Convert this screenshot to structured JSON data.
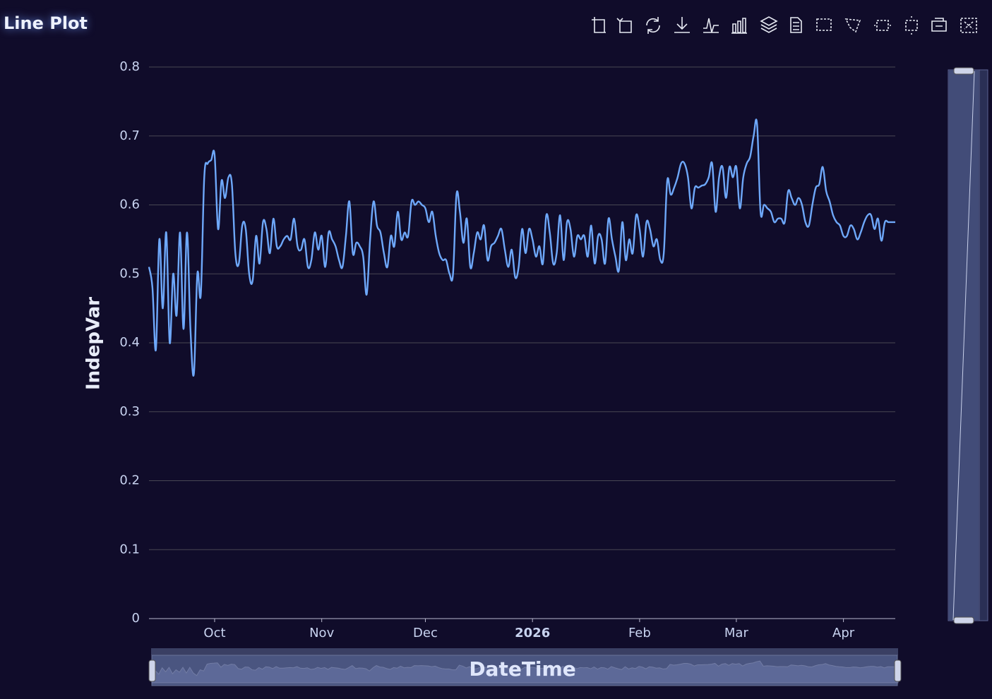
{
  "chart_data": {
    "type": "line",
    "title": "Line Plot",
    "xlabel": "DateTime",
    "ylabel": "IndepVar",
    "x": [
      "2025-09-12",
      "2025-09-13",
      "2025-09-14",
      "2025-09-15",
      "2025-09-16",
      "2025-09-17",
      "2025-09-18",
      "2025-09-19",
      "2025-09-20",
      "2025-09-21",
      "2025-09-22",
      "2025-09-23",
      "2025-09-24",
      "2025-09-25",
      "2025-09-26",
      "2025-09-27",
      "2025-09-28",
      "2025-09-29",
      "2025-09-30",
      "2025-10-01",
      "2025-10-02",
      "2025-10-03",
      "2025-10-04",
      "2025-10-05",
      "2025-10-06",
      "2025-10-07",
      "2025-10-08",
      "2025-10-09",
      "2025-10-10",
      "2025-10-11",
      "2025-10-12",
      "2025-10-13",
      "2025-10-14",
      "2025-10-15",
      "2025-10-16",
      "2025-10-17",
      "2025-10-18",
      "2025-10-19",
      "2025-10-20",
      "2025-10-21",
      "2025-10-22",
      "2025-10-23",
      "2025-10-24",
      "2025-10-25",
      "2025-10-26",
      "2025-10-27",
      "2025-10-28",
      "2025-10-29",
      "2025-10-30",
      "2025-10-31",
      "2025-11-01",
      "2025-11-02",
      "2025-11-03",
      "2025-11-04",
      "2025-11-05",
      "2025-11-06",
      "2025-11-07",
      "2025-11-08",
      "2025-11-09",
      "2025-11-10",
      "2025-11-11",
      "2025-11-12",
      "2025-11-13",
      "2025-11-14",
      "2025-11-15",
      "2025-11-16",
      "2025-11-17",
      "2025-11-18",
      "2025-11-19",
      "2025-11-20",
      "2025-11-21",
      "2025-11-22",
      "2025-11-23",
      "2025-11-24",
      "2025-11-25",
      "2025-11-26",
      "2025-11-27",
      "2025-11-28",
      "2025-11-29",
      "2025-11-30",
      "2025-12-01",
      "2025-12-02",
      "2025-12-03",
      "2025-12-04",
      "2025-12-05",
      "2025-12-06",
      "2025-12-07",
      "2025-12-08",
      "2025-12-09",
      "2025-12-10",
      "2025-12-11",
      "2025-12-12",
      "2025-12-13",
      "2025-12-14",
      "2025-12-15",
      "2025-12-16",
      "2025-12-17",
      "2025-12-18",
      "2025-12-19",
      "2025-12-20",
      "2025-12-21",
      "2025-12-22",
      "2025-12-23",
      "2025-12-24",
      "2025-12-25",
      "2025-12-26",
      "2025-12-27",
      "2025-12-28",
      "2025-12-29",
      "2025-12-30",
      "2025-12-31",
      "2026-01-01",
      "2026-01-02",
      "2026-01-03",
      "2026-01-04",
      "2026-01-05",
      "2026-01-06",
      "2026-01-07",
      "2026-01-08",
      "2026-01-09",
      "2026-01-10",
      "2026-01-11",
      "2026-01-12",
      "2026-01-13",
      "2026-01-14",
      "2026-01-15",
      "2026-01-16",
      "2026-01-17",
      "2026-01-18",
      "2026-01-19",
      "2026-01-20",
      "2026-01-21",
      "2026-01-22",
      "2026-01-23",
      "2026-01-24",
      "2026-01-25",
      "2026-01-26",
      "2026-01-27",
      "2026-01-28",
      "2026-01-29",
      "2026-01-30",
      "2026-01-31",
      "2026-02-01",
      "2026-02-02",
      "2026-02-03",
      "2026-02-04",
      "2026-02-05",
      "2026-02-06",
      "2026-02-07",
      "2026-02-08",
      "2026-02-09",
      "2026-02-10",
      "2026-02-11",
      "2026-02-12",
      "2026-02-13",
      "2026-02-14",
      "2026-02-15",
      "2026-02-16",
      "2026-02-17",
      "2026-02-18",
      "2026-02-19",
      "2026-02-20",
      "2026-02-21",
      "2026-02-22",
      "2026-02-23",
      "2026-02-24",
      "2026-02-25",
      "2026-02-26",
      "2026-02-27",
      "2026-02-28",
      "2026-03-01",
      "2026-03-02",
      "2026-03-03",
      "2026-03-04",
      "2026-03-05",
      "2026-03-06",
      "2026-03-07",
      "2026-03-08",
      "2026-03-09",
      "2026-03-10",
      "2026-03-11",
      "2026-03-12",
      "2026-03-13",
      "2026-03-14",
      "2026-03-15",
      "2026-03-16",
      "2026-03-17",
      "2026-03-18",
      "2026-03-19",
      "2026-03-20",
      "2026-03-21",
      "2026-03-22",
      "2026-03-23",
      "2026-03-24",
      "2026-03-25",
      "2026-03-26",
      "2026-03-27",
      "2026-03-28",
      "2026-03-29",
      "2026-03-30",
      "2026-03-31",
      "2026-04-01",
      "2026-04-02",
      "2026-04-03",
      "2026-04-04",
      "2026-04-05",
      "2026-04-06",
      "2026-04-07",
      "2026-04-08",
      "2026-04-09",
      "2026-04-10",
      "2026-04-11",
      "2026-04-12",
      "2026-04-13",
      "2026-04-14",
      "2026-04-15",
      "2026-04-16"
    ],
    "series": [
      {
        "color": "#6ea8fa",
        "values": [
          0.51,
          0.48,
          0.39,
          0.55,
          0.45,
          0.56,
          0.4,
          0.5,
          0.44,
          0.56,
          0.42,
          0.56,
          0.42,
          0.355,
          0.5,
          0.47,
          0.64,
          0.66,
          0.665,
          0.672,
          0.565,
          0.635,
          0.61,
          0.64,
          0.63,
          0.53,
          0.515,
          0.57,
          0.565,
          0.5,
          0.49,
          0.555,
          0.515,
          0.575,
          0.565,
          0.53,
          0.58,
          0.54,
          0.54,
          0.55,
          0.555,
          0.55,
          0.58,
          0.54,
          0.535,
          0.55,
          0.51,
          0.52,
          0.56,
          0.535,
          0.555,
          0.51,
          0.56,
          0.55,
          0.54,
          0.52,
          0.51,
          0.555,
          0.605,
          0.53,
          0.545,
          0.54,
          0.525,
          0.47,
          0.55,
          0.605,
          0.57,
          0.56,
          0.53,
          0.51,
          0.555,
          0.54,
          0.59,
          0.55,
          0.56,
          0.555,
          0.605,
          0.6,
          0.605,
          0.6,
          0.595,
          0.575,
          0.59,
          0.555,
          0.53,
          0.52,
          0.52,
          0.5,
          0.5,
          0.615,
          0.59,
          0.545,
          0.58,
          0.51,
          0.53,
          0.56,
          0.55,
          0.57,
          0.52,
          0.54,
          0.545,
          0.555,
          0.565,
          0.535,
          0.51,
          0.535,
          0.495,
          0.51,
          0.565,
          0.53,
          0.565,
          0.55,
          0.525,
          0.54,
          0.515,
          0.585,
          0.56,
          0.515,
          0.53,
          0.585,
          0.52,
          0.575,
          0.565,
          0.525,
          0.555,
          0.55,
          0.555,
          0.525,
          0.57,
          0.515,
          0.555,
          0.55,
          0.515,
          0.58,
          0.55,
          0.525,
          0.505,
          0.575,
          0.52,
          0.55,
          0.53,
          0.585,
          0.565,
          0.525,
          0.575,
          0.565,
          0.54,
          0.55,
          0.52,
          0.53,
          0.635,
          0.615,
          0.625,
          0.64,
          0.66,
          0.66,
          0.64,
          0.595,
          0.625,
          0.625,
          0.628,
          0.63,
          0.64,
          0.66,
          0.59,
          0.64,
          0.655,
          0.61,
          0.655,
          0.64,
          0.655,
          0.595,
          0.64,
          0.66,
          0.67,
          0.7,
          0.717,
          0.59,
          0.6,
          0.595,
          0.59,
          0.575,
          0.58,
          0.58,
          0.575,
          0.62,
          0.61,
          0.6,
          0.61,
          0.6,
          0.575,
          0.57,
          0.6,
          0.625,
          0.63,
          0.655,
          0.62,
          0.605,
          0.585,
          0.575,
          0.57,
          0.555,
          0.555,
          0.57,
          0.565,
          0.55,
          0.56,
          0.575,
          0.585,
          0.585,
          0.565,
          0.58,
          0.548,
          0.575,
          0.575,
          0.575,
          0.575
        ]
      }
    ],
    "xlim": [
      "2025-09-12",
      "2026-04-16"
    ],
    "xticks": [
      {
        "value": "2025-10-01",
        "label": "Oct"
      },
      {
        "value": "2025-11-01",
        "label": "Nov"
      },
      {
        "value": "2025-12-01",
        "label": "Dec"
      },
      {
        "value": "2026-01-01",
        "label": "2026"
      },
      {
        "value": "2026-02-01",
        "label": "Feb"
      },
      {
        "value": "2026-03-01",
        "label": "Mar"
      },
      {
        "value": "2026-04-01",
        "label": "Apr"
      }
    ],
    "ylim": [
      0,
      0.8
    ],
    "yticks": [
      0,
      0.1,
      0.2,
      0.3,
      0.4,
      0.5,
      0.6,
      0.7,
      0.8
    ],
    "grid": true
  }
}
